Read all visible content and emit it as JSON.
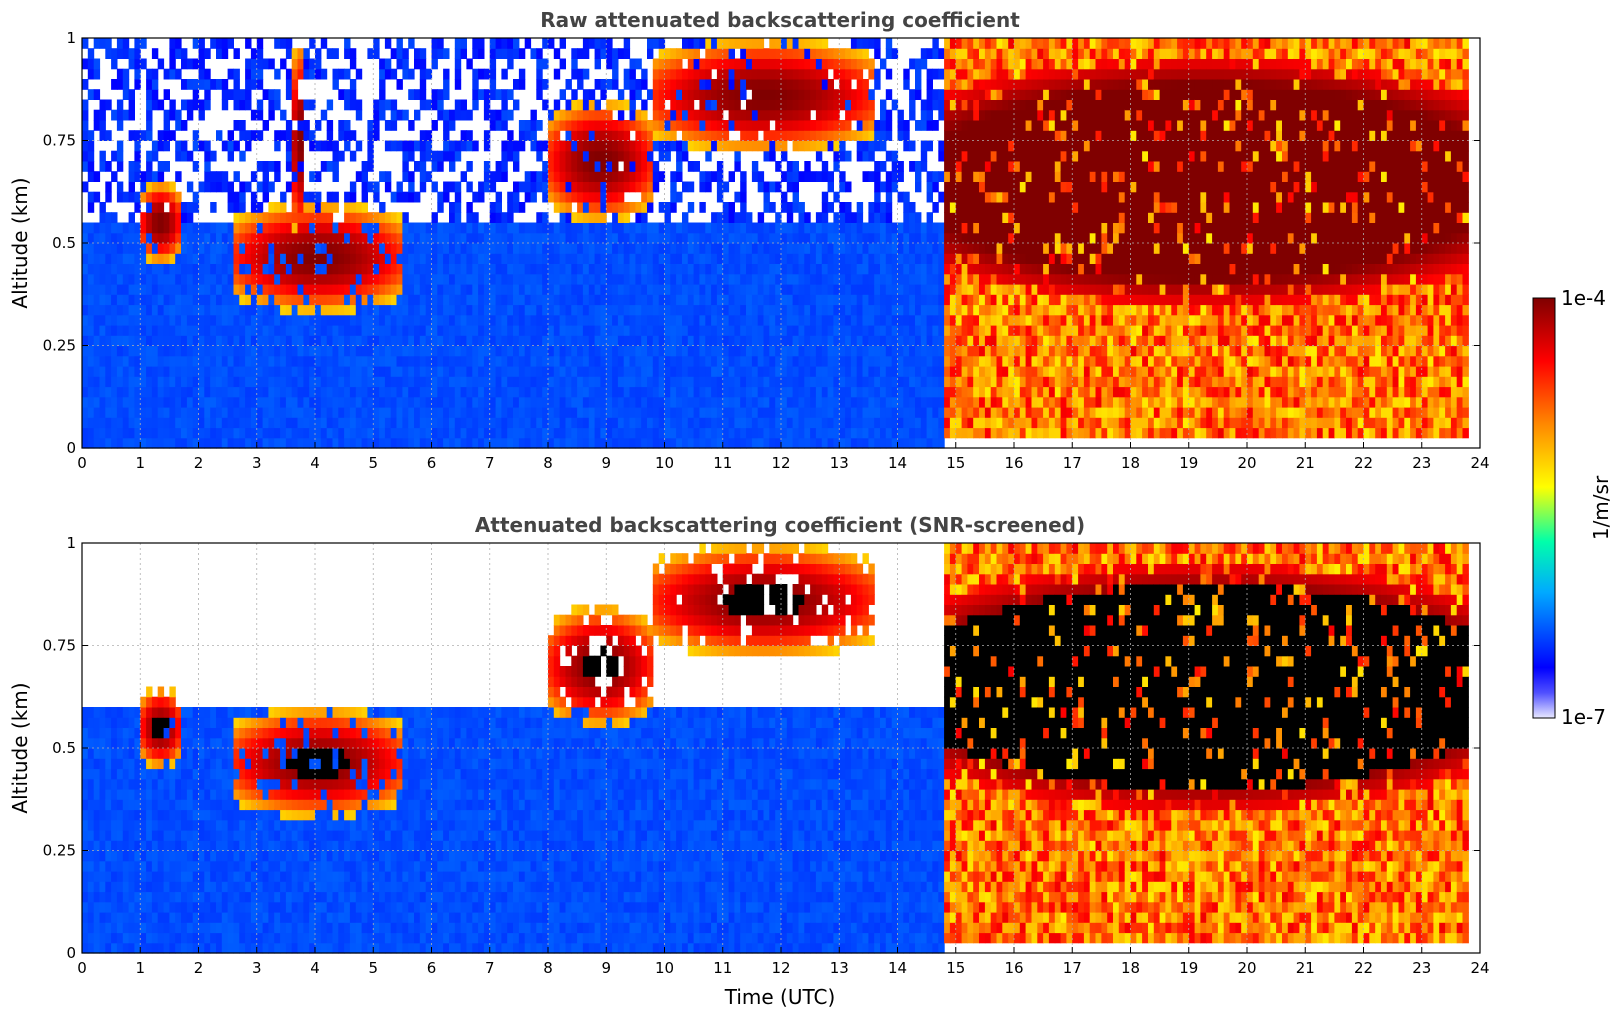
{
  "chart_data": [
    {
      "type": "heatmap",
      "title": "Raw attenuated backscattering coefficient",
      "xlabel": "",
      "ylabel": "Altitude (km)",
      "xlim": [
        0,
        24
      ],
      "ylim": [
        0,
        1
      ],
      "x_ticks": [
        "0",
        "1",
        "2",
        "3",
        "4",
        "5",
        "6",
        "7",
        "8",
        "9",
        "10",
        "11",
        "12",
        "13",
        "14",
        "15",
        "16",
        "17",
        "18",
        "19",
        "20",
        "21",
        "22",
        "23",
        "24"
      ],
      "y_ticks": [
        "0",
        "0.25",
        "0.5",
        "0.75",
        "1"
      ],
      "grid": true,
      "data_extent_hours": [
        0,
        23.8
      ],
      "features": [
        {
          "kind": "background",
          "hours": [
            0,
            14.8
          ],
          "altitude_km": [
            0,
            1
          ],
          "level": 0.2
        },
        {
          "kind": "noise",
          "hours": [
            0,
            14.8
          ],
          "altitude_km": [
            0.55,
            1
          ],
          "level": 0.12
        },
        {
          "kind": "cloud",
          "hours": [
            1.0,
            1.7
          ],
          "altitude_km": [
            0.45,
            0.65
          ],
          "level": 0.98
        },
        {
          "kind": "cloud",
          "hours": [
            2.6,
            5.5
          ],
          "altitude_km": [
            0.33,
            0.6
          ],
          "level": 0.98
        },
        {
          "kind": "cloud",
          "hours": [
            3.6,
            3.85
          ],
          "altitude_km": [
            0.5,
            1.0
          ],
          "level": 0.9
        },
        {
          "kind": "cloud",
          "hours": [
            8.0,
            9.8
          ],
          "altitude_km": [
            0.55,
            0.85
          ],
          "level": 0.95
        },
        {
          "kind": "cloud",
          "hours": [
            9.8,
            13.6
          ],
          "altitude_km": [
            0.72,
            1.0
          ],
          "level": 0.97
        },
        {
          "kind": "fog",
          "hours": [
            14.8,
            23.8
          ],
          "altitude_km": [
            0.02,
            1.0
          ],
          "level": 0.82
        },
        {
          "kind": "fog-top",
          "hours": [
            14.8,
            23.8
          ],
          "altitude_km": [
            0.35,
            0.95
          ],
          "level": 0.98
        }
      ]
    },
    {
      "type": "heatmap",
      "title": "Attenuated backscattering coefficient (SNR-screened)",
      "xlabel": "Time (UTC)",
      "ylabel": "Altitude (km)",
      "xlim": [
        0,
        24
      ],
      "ylim": [
        0,
        1
      ],
      "x_ticks": [
        "0",
        "1",
        "2",
        "3",
        "4",
        "5",
        "6",
        "7",
        "8",
        "9",
        "10",
        "11",
        "12",
        "13",
        "14",
        "15",
        "16",
        "17",
        "18",
        "19",
        "20",
        "21",
        "22",
        "23",
        "24"
      ],
      "y_ticks": [
        "0",
        "0.25",
        "0.5",
        "0.75",
        "1"
      ],
      "grid": true,
      "data_extent_hours": [
        0,
        23.8
      ],
      "features": [
        {
          "kind": "background",
          "hours": [
            0,
            14.8
          ],
          "altitude_km": [
            0,
            0.6
          ],
          "level": 0.2
        },
        {
          "kind": "cloud",
          "hours": [
            1.0,
            1.7
          ],
          "altitude_km": [
            0.45,
            0.65
          ],
          "level": 1.0
        },
        {
          "kind": "cloud",
          "hours": [
            2.6,
            5.5
          ],
          "altitude_km": [
            0.33,
            0.6
          ],
          "level": 1.0
        },
        {
          "kind": "cloud",
          "hours": [
            8.0,
            9.8
          ],
          "altitude_km": [
            0.55,
            0.85
          ],
          "level": 1.0
        },
        {
          "kind": "cloud",
          "hours": [
            9.8,
            13.6
          ],
          "altitude_km": [
            0.72,
            1.0
          ],
          "level": 1.0
        },
        {
          "kind": "fog",
          "hours": [
            14.8,
            23.8
          ],
          "altitude_km": [
            0.02,
            1.0
          ],
          "level": 0.82
        },
        {
          "kind": "fog-top",
          "hours": [
            14.8,
            23.8
          ],
          "altitude_km": [
            0.35,
            0.95
          ],
          "level": 1.0
        }
      ]
    }
  ],
  "colorbar": {
    "label": "1/m/sr",
    "max_label": "1e-4",
    "min_label": "1e-7",
    "scale": "log",
    "range": [
      1e-07,
      0.0001
    ],
    "colormap": "jet",
    "colors": [
      "#e8e8ff",
      "#0000ff",
      "#00aaff",
      "#00ffaa",
      "#ffff00",
      "#ff8800",
      "#ff0000",
      "#800000"
    ]
  }
}
